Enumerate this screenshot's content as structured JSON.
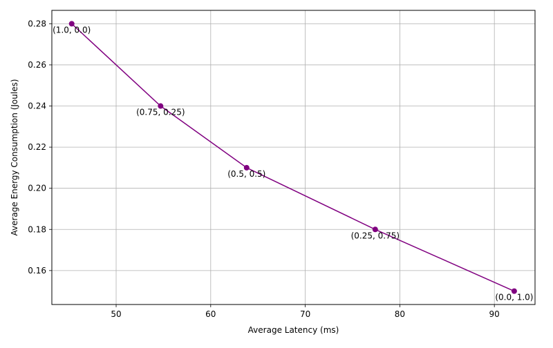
{
  "chart_data": {
    "type": "line",
    "title": "",
    "xlabel": "Average Latency (ms)",
    "ylabel": "Average Energy Consumption (Joules)",
    "xlim": [
      43.2,
      94.3
    ],
    "ylim": [
      0.1435,
      0.2865
    ],
    "x_ticks": [
      50,
      60,
      70,
      80,
      90
    ],
    "y_ticks": [
      0.16,
      0.18,
      0.2,
      0.22,
      0.24,
      0.26,
      0.28
    ],
    "grid": true,
    "series": [
      {
        "color": "#800080",
        "marker": "circle",
        "points": [
          {
            "x": 45.3,
            "y": 0.28,
            "label": "(1.0, 0.0)"
          },
          {
            "x": 54.7,
            "y": 0.24,
            "label": "(0.75, 0.25)"
          },
          {
            "x": 63.8,
            "y": 0.21,
            "label": "(0.5, 0.5)"
          },
          {
            "x": 77.4,
            "y": 0.18,
            "label": "(0.25, 0.75)"
          },
          {
            "x": 92.1,
            "y": 0.15,
            "label": "(0.0, 1.0)"
          }
        ]
      }
    ]
  }
}
